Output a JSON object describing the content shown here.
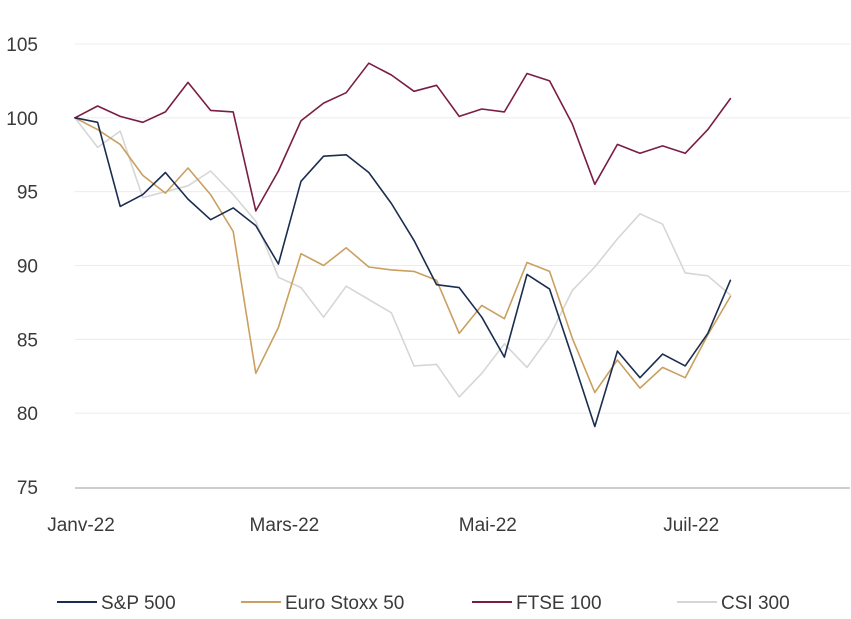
{
  "chart_data": {
    "type": "line",
    "title": "",
    "xlabel": "",
    "ylabel": "",
    "ylim": [
      75,
      105
    ],
    "yticks": [
      75,
      80,
      85,
      90,
      95,
      100,
      105
    ],
    "xlim": [
      0,
      34
    ],
    "xticks": [
      {
        "x": 0,
        "label": "Janv-22"
      },
      {
        "x": 9,
        "label": "Mars-22"
      },
      {
        "x": 18,
        "label": "Mai-22"
      },
      {
        "x": 27,
        "label": "Juil-22"
      }
    ],
    "grid": "horizontal",
    "legend_position": "bottom",
    "x": [
      0,
      1,
      2,
      3,
      4,
      5,
      6,
      7,
      8,
      9,
      10,
      11,
      12,
      13,
      14,
      15,
      16,
      17,
      18,
      19,
      20,
      21,
      22,
      23,
      24,
      25,
      26,
      27,
      28,
      29,
      30
    ],
    "series": [
      {
        "name": "S&P 500",
        "color": "#1b2d4f",
        "values": [
          100,
          99.7,
          94.0,
          94.8,
          96.3,
          94.5,
          93.1,
          93.9,
          92.7,
          90.1,
          95.7,
          97.4,
          97.5,
          96.3,
          94.2,
          91.7,
          88.7,
          88.5,
          86.5,
          83.8,
          89.4,
          88.4,
          83.8,
          79.1,
          84.2,
          82.4,
          84.0,
          83.2,
          85.4,
          89.0,
          null
        ]
      },
      {
        "name": "Euro Stoxx 50",
        "color": "#c9a05f",
        "values": [
          100,
          99.2,
          98.2,
          96.1,
          94.9,
          96.6,
          94.8,
          92.3,
          82.7,
          85.8,
          90.8,
          90.0,
          91.2,
          89.9,
          89.7,
          89.6,
          89.0,
          85.4,
          87.3,
          86.4,
          90.2,
          89.6,
          85.1,
          81.4,
          83.6,
          81.7,
          83.1,
          82.4,
          85.3,
          87.9,
          null
        ]
      },
      {
        "name": "FTSE 100",
        "color": "#7a1d45",
        "values": [
          100,
          100.8,
          100.1,
          99.7,
          100.4,
          102.4,
          100.5,
          100.4,
          93.7,
          96.4,
          99.8,
          101.0,
          101.7,
          103.7,
          102.9,
          101.8,
          102.2,
          100.1,
          100.6,
          100.4,
          103.0,
          102.5,
          99.6,
          95.5,
          98.2,
          97.6,
          98.1,
          97.6,
          99.2,
          101.3,
          null
        ]
      },
      {
        "name": "CSI 300",
        "color": "#d6d6d6",
        "values": [
          100,
          98.0,
          99.1,
          94.6,
          95.0,
          95.4,
          96.4,
          94.8,
          93.0,
          89.2,
          88.5,
          86.5,
          88.6,
          87.7,
          86.8,
          83.2,
          83.3,
          81.1,
          82.7,
          84.7,
          83.1,
          85.2,
          88.3,
          89.9,
          91.8,
          93.5,
          92.8,
          89.5,
          89.3,
          88.0,
          null
        ]
      }
    ]
  }
}
